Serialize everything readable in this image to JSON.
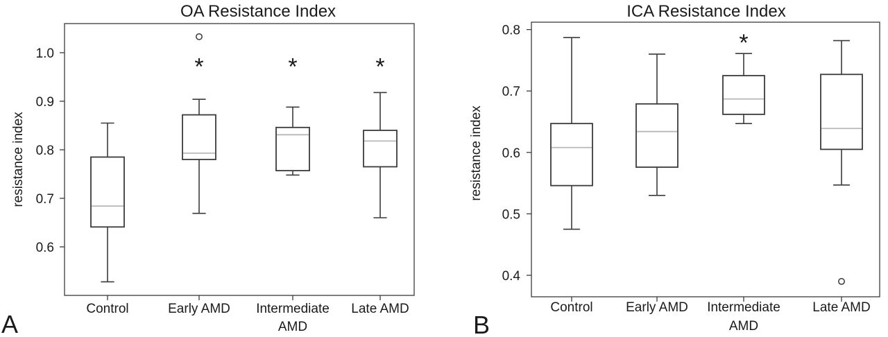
{
  "chart_data": [
    {
      "type": "box",
      "panel_label": "A",
      "title": "OA Resistance Index",
      "ylabel": "resistance index",
      "xlabel": "",
      "ylim": [
        0.5,
        1.06
      ],
      "yticks": [
        0.6,
        0.7,
        0.8,
        0.9,
        1.0
      ],
      "ytick_labels": [
        "0.6",
        "0.7",
        "0.8",
        "0.9",
        "1.0"
      ],
      "categories": [
        {
          "line1": "Control",
          "line2": ""
        },
        {
          "line1": "Early AMD",
          "line2": ""
        },
        {
          "line1": "Intermediate",
          "line2": "AMD"
        },
        {
          "line1": "Late AMD",
          "line2": ""
        }
      ],
      "boxes": [
        {
          "whisker_low": 0.528,
          "q1": 0.641,
          "median": 0.684,
          "q3": 0.785,
          "whisker_high": 0.855,
          "outliers": [],
          "significance": ""
        },
        {
          "whisker_low": 0.669,
          "q1": 0.78,
          "median": 0.793,
          "q3": 0.872,
          "whisker_high": 0.904,
          "outliers": [
            1.033
          ],
          "significance": "*"
        },
        {
          "whisker_low": 0.748,
          "q1": 0.757,
          "median": 0.831,
          "q3": 0.846,
          "whisker_high": 0.888,
          "outliers": [],
          "significance": "*"
        },
        {
          "whisker_low": 0.66,
          "q1": 0.765,
          "median": 0.818,
          "q3": 0.84,
          "whisker_high": 0.918,
          "outliers": [],
          "significance": "*"
        }
      ],
      "grid": false
    },
    {
      "type": "box",
      "panel_label": "B",
      "title": "ICA Resistance Index",
      "ylabel": "resistance index",
      "xlabel": "",
      "ylim": [
        0.365,
        0.812
      ],
      "yticks": [
        0.4,
        0.5,
        0.6,
        0.7,
        0.8
      ],
      "ytick_labels": [
        "0.4",
        "0.5",
        "0.6",
        "0.7",
        "0.8"
      ],
      "categories": [
        {
          "line1": "Control",
          "line2": ""
        },
        {
          "line1": "Early AMD",
          "line2": ""
        },
        {
          "line1": "Intermediate",
          "line2": "AMD"
        },
        {
          "line1": "Late AMD",
          "line2": ""
        }
      ],
      "boxes": [
        {
          "whisker_low": 0.475,
          "q1": 0.546,
          "median": 0.608,
          "q3": 0.647,
          "whisker_high": 0.787,
          "outliers": [],
          "significance": ""
        },
        {
          "whisker_low": 0.53,
          "q1": 0.576,
          "median": 0.634,
          "q3": 0.679,
          "whisker_high": 0.76,
          "outliers": [],
          "significance": ""
        },
        {
          "whisker_low": 0.647,
          "q1": 0.662,
          "median": 0.687,
          "q3": 0.725,
          "whisker_high": 0.761,
          "outliers": [],
          "significance": "*"
        },
        {
          "whisker_low": 0.547,
          "q1": 0.605,
          "median": 0.639,
          "q3": 0.727,
          "whisker_high": 0.782,
          "outliers": [
            0.39
          ],
          "significance": ""
        }
      ],
      "grid": false
    }
  ],
  "colors": {
    "box_stroke": "#3a3a3a",
    "median_line": "#b8b8b8",
    "axis": "#3a3a3a",
    "text": "#1a1a1a"
  }
}
